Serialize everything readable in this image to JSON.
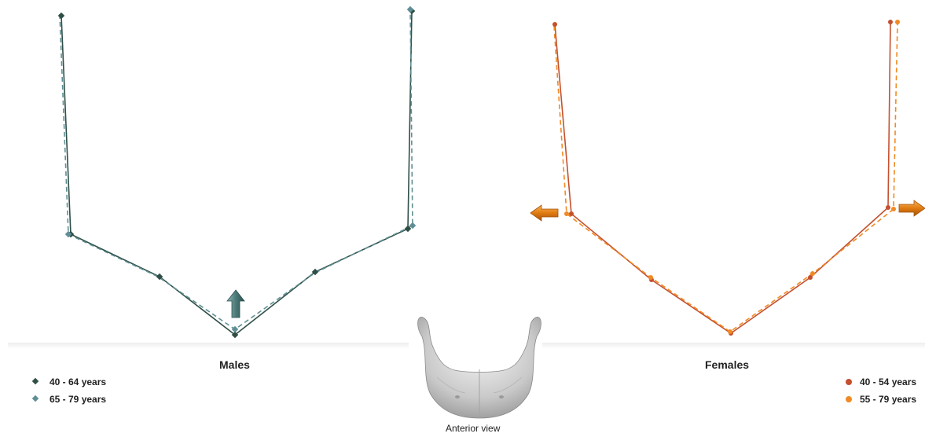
{
  "males": {
    "title": "Males",
    "legend": [
      {
        "label": "40 - 64 years",
        "color": "#2f4f46",
        "marker": "diamond",
        "style": "solid"
      },
      {
        "label": "65 - 79 years",
        "color": "#5f8f96",
        "marker": "diamond",
        "style": "dashed"
      }
    ],
    "movement_arrow": {
      "direction": "up",
      "color": "#4c7a78"
    }
  },
  "females": {
    "title": "Females",
    "legend": [
      {
        "label": "40 - 54 years",
        "color": "#c4502e",
        "marker": "circle",
        "style": "solid"
      },
      {
        "label": "55 - 79 years",
        "color": "#f08a24",
        "marker": "circle",
        "style": "dashed"
      }
    ],
    "movement_arrows": [
      {
        "direction": "left",
        "color": "#e07b10"
      },
      {
        "direction": "right",
        "color": "#e07b10"
      }
    ]
  },
  "caption": "Anterior view",
  "mandible_icon": "mandible-3d-render"
}
